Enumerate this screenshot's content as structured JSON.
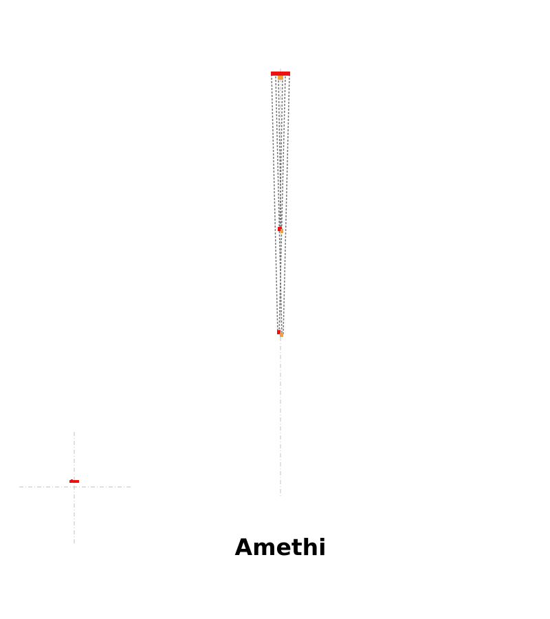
{
  "title": "Amethi",
  "colors": {
    "background": "#ffffff",
    "marker_primary": "#ee1111",
    "marker_secondary": "#f0a040",
    "taper_line": "#777777",
    "axis_guide": "#cccccc",
    "caption": "#000000"
  }
}
